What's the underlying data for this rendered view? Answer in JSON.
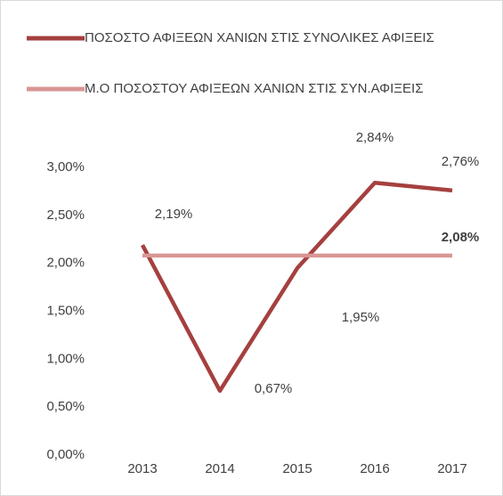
{
  "chart_data": {
    "type": "line",
    "categories": [
      "2013",
      "2014",
      "2015",
      "2016",
      "2017"
    ],
    "series": [
      {
        "name": "ΠΟΣΟΣΤΟ ΑΦΙΞΕΩΝ ΧΑΝΙΩΝ ΣΤΙΣ ΣΥΝΟΛΙΚΕΣ ΑΦΙΞΕΙΣ",
        "color": "#a5403f",
        "values": [
          2.19,
          0.67,
          1.95,
          2.84,
          2.76
        ],
        "value_labels": [
          "2,19%",
          "0,67%",
          "1,95%",
          "2,84%",
          "2,76%"
        ]
      },
      {
        "name": "Μ.Ο ΠΟΣΟΣΤΟΥ ΑΦΙΞΕΩΝ ΧΑΝΙΩΝ ΣΤΙΣ ΣΥΝ.ΑΦΙΞΕΙΣ",
        "color": "#d99694",
        "values": [
          2.08,
          2.08,
          2.08,
          2.08,
          2.08
        ],
        "value_labels": [
          null,
          null,
          null,
          null,
          "2,08%"
        ]
      }
    ],
    "ylim": [
      0,
      3
    ],
    "yticks": [
      {
        "value": 0,
        "label": "0,00%"
      },
      {
        "value": 0.5,
        "label": "0,50%"
      },
      {
        "value": 1,
        "label": "1,00%"
      },
      {
        "value": 1.5,
        "label": "1,50%"
      },
      {
        "value": 2,
        "label": "2,00%"
      },
      {
        "value": 2.5,
        "label": "2,50%"
      },
      {
        "value": 3,
        "label": "3,00%"
      }
    ],
    "grid": false,
    "legend": "top"
  }
}
